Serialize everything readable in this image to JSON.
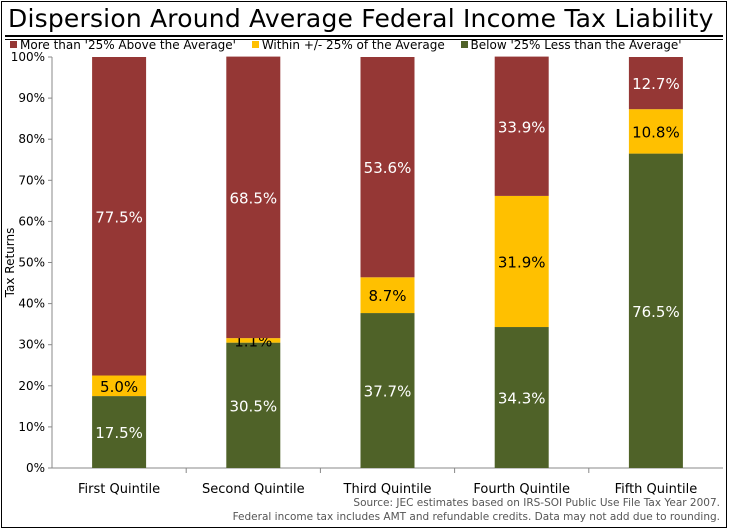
{
  "chart_data": {
    "type": "bar",
    "stacked": true,
    "title": "Dispersion Around Average Federal Income Tax Liability",
    "xlabel": "",
    "ylabel": "Tax Returns",
    "ylim": [
      0,
      100
    ],
    "yticks": [
      "0%",
      "10%",
      "20%",
      "30%",
      "40%",
      "50%",
      "60%",
      "70%",
      "80%",
      "90%",
      "100%"
    ],
    "categories": [
      "First Quintile",
      "Second Quintile",
      "Third Quintile",
      "Fourth Quintile",
      "Fifth Quintile"
    ],
    "series": [
      {
        "name": "Below '25% Less than the Average'",
        "color": "#4f6228",
        "values": [
          17.5,
          30.5,
          37.7,
          34.3,
          76.5
        ],
        "labels": [
          "17.5%",
          "30.5%",
          "37.7%",
          "34.3%",
          "76.5%"
        ]
      },
      {
        "name": "Within +/- 25% of the Average",
        "color": "#ffc000",
        "values": [
          5.0,
          1.1,
          8.7,
          31.9,
          10.8
        ],
        "labels": [
          "5.0%",
          "1.1%",
          "8.7%",
          "31.9%",
          "10.8%"
        ]
      },
      {
        "name": "More than '25% Above the Average'",
        "color": "#953735",
        "values": [
          77.5,
          68.5,
          53.6,
          33.9,
          12.7
        ],
        "labels": [
          "77.5%",
          "68.5%",
          "53.6%",
          "33.9%",
          "12.7%"
        ]
      }
    ],
    "legend": {
      "position": "top",
      "items": [
        {
          "label": "More than '25% Above the Average'",
          "color": "#953735"
        },
        {
          "label": "Within +/- 25% of the Average",
          "color": "#ffc000"
        },
        {
          "label": "Below '25% Less than the Average'",
          "color": "#4f6228"
        }
      ]
    },
    "source_lines": [
      "Source: JEC estimates based on IRS-SOI Public Use File Tax Year 2007.",
      "Federal income tax includes AMT and refundable credits. Data may not add due to rounding."
    ]
  }
}
